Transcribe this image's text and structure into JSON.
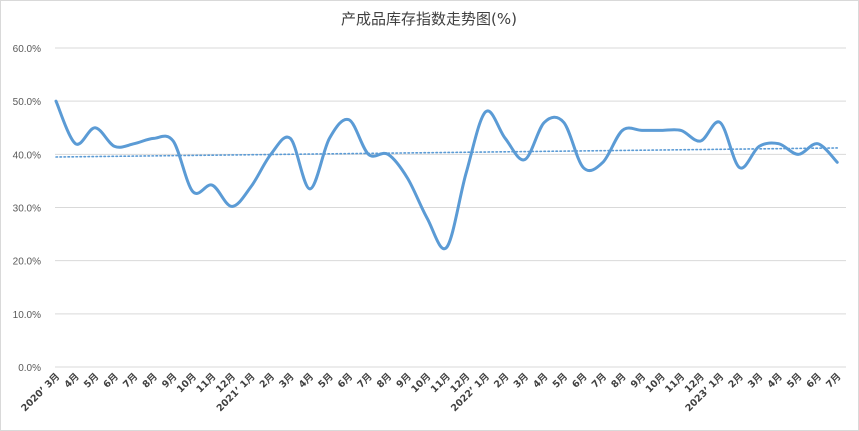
{
  "chart_data": {
    "type": "line",
    "title": "产成品库存指数走势图(%)",
    "xlabel": "",
    "ylabel": "",
    "ylim": [
      0,
      60
    ],
    "ytick_labels": [
      "0.0%",
      "10.0%",
      "20.0%",
      "30.0%",
      "40.0%",
      "50.0%",
      "60.0%"
    ],
    "grid": true,
    "legend": "none",
    "categories": [
      "2020’ 3月",
      "4月",
      "5月",
      "6月",
      "7月",
      "8月",
      "9月",
      "10月",
      "11月",
      "12月",
      "2021’ 1月",
      "2月",
      "3月",
      "4月",
      "5月",
      "6月",
      "7月",
      "8月",
      "9月",
      "10月",
      "11月",
      "12月",
      "2022’ 1月",
      "2月",
      "3月",
      "4月",
      "5月",
      "6月",
      "7月",
      "8月",
      "9月",
      "10月",
      "11月",
      "12月",
      "2023’ 1月",
      "2月",
      "3月",
      "4月",
      "5月",
      "6月",
      "7月"
    ],
    "series": [
      {
        "color": "#5b9bd5",
        "values": [
          50.0,
          42.0,
          45.0,
          41.5,
          42.0,
          43.0,
          42.5,
          33.0,
          34.2,
          30.2,
          34.0,
          40.0,
          43.0,
          33.5,
          43.0,
          46.5,
          40.0,
          40.0,
          35.5,
          28.0,
          22.5,
          36.5,
          48.0,
          43.0,
          39.0,
          46.0,
          46.0,
          37.5,
          38.5,
          44.5,
          44.5,
          44.5,
          44.5,
          42.5,
          46.0,
          37.5,
          41.5,
          42.0,
          40.0,
          42.0,
          38.5
        ]
      }
    ],
    "trendline": {
      "color": "#5b9bd5",
      "style": "dotted",
      "start": 39.5,
      "end": 41.2
    }
  }
}
